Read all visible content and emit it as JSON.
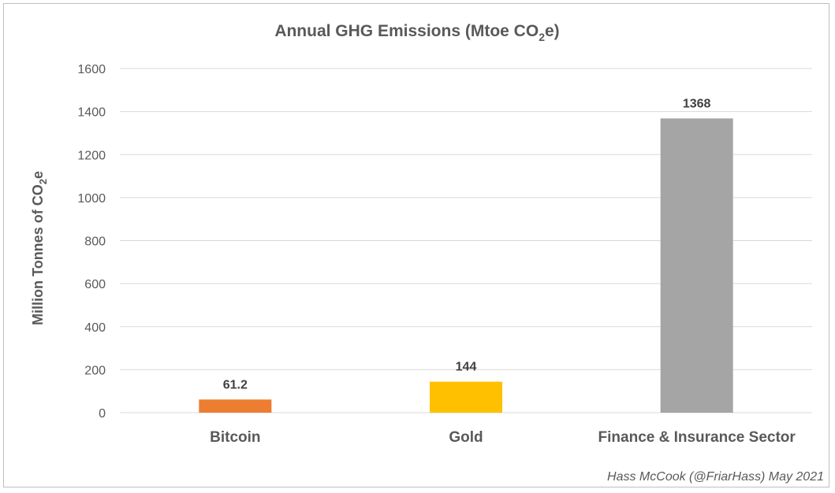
{
  "chart_data": {
    "type": "bar",
    "title": "Annual GHG Emissions (Mtoe CO",
    "title_sub": "2",
    "title_tail": "e)",
    "ylabel": "Million Tonnes of CO",
    "ylabel_sub": "2",
    "ylabel_tail": "e",
    "categories": [
      "Bitcoin",
      "Gold",
      "Finance & Insurance Sector"
    ],
    "values": [
      61.2,
      144,
      1368
    ],
    "data_labels": [
      "61.2",
      "144",
      "1368"
    ],
    "colors": [
      "#ed7d31",
      "#ffc000",
      "#a5a5a5"
    ],
    "ylim": [
      0,
      1600
    ],
    "yticks": [
      0,
      200,
      400,
      600,
      800,
      1000,
      1200,
      1400,
      1600
    ],
    "grid": true,
    "gridColor": "#d9d9d9"
  },
  "credit": "Hass McCook (@FriarHass)  May 2021"
}
